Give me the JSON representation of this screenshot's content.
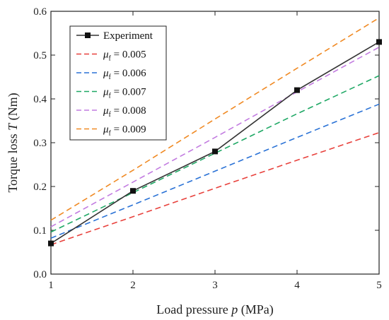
{
  "chart_data": {
    "type": "line",
    "xlabel": {
      "prefix": "Load pressure ",
      "var": "p",
      "suffix": " (MPa)"
    },
    "ylabel": {
      "prefix": "Torque loss ",
      "var": "T",
      "suffix": " (Nm)"
    },
    "xlim": [
      1,
      5
    ],
    "ylim": [
      0.0,
      0.6
    ],
    "x_ticks": [
      1,
      2,
      3,
      4,
      5
    ],
    "x_tick_labels": [
      "1",
      "2",
      "3",
      "4",
      "5"
    ],
    "y_ticks": [
      0.0,
      0.1,
      0.2,
      0.3,
      0.4,
      0.5,
      0.6
    ],
    "y_tick_labels": [
      "0.0",
      "0.1",
      "0.2",
      "0.3",
      "0.4",
      "0.5",
      "0.6"
    ],
    "grid": false,
    "legend_position": "top-left",
    "x": [
      1,
      2,
      3,
      4,
      5
    ],
    "series": [
      {
        "name": "Experiment",
        "legend_sym": "",
        "legend_sub": "",
        "legend_val": "",
        "color": "#333333",
        "style": "solid",
        "marker": "square",
        "values": [
          0.07,
          0.19,
          0.28,
          0.42,
          0.53
        ]
      },
      {
        "name": "μf = 0.005",
        "legend_sym": "μ",
        "legend_sub": "f",
        "legend_val": " = 0.005",
        "color": "#e8413c",
        "style": "dashed",
        "marker": "none",
        "values": [
          0.067,
          0.131,
          0.196,
          0.26,
          0.323
        ]
      },
      {
        "name": "μf = 0.006",
        "legend_sym": "μ",
        "legend_sub": "f",
        "legend_val": " = 0.006",
        "color": "#2a72d6",
        "style": "dashed",
        "marker": "none",
        "values": [
          0.082,
          0.158,
          0.235,
          0.312,
          0.388
        ]
      },
      {
        "name": "μf = 0.007",
        "legend_sym": "μ",
        "legend_sub": "f",
        "legend_val": " = 0.007",
        "color": "#1fa865",
        "style": "dashed",
        "marker": "none",
        "values": [
          0.096,
          0.186,
          0.276,
          0.366,
          0.453
        ]
      },
      {
        "name": "μf = 0.008",
        "legend_sym": "μ",
        "legend_sub": "f",
        "legend_val": " = 0.008",
        "color": "#c27be0",
        "style": "dashed",
        "marker": "none",
        "values": [
          0.108,
          0.21,
          0.312,
          0.416,
          0.518
        ]
      },
      {
        "name": "μf = 0.009",
        "legend_sym": "μ",
        "legend_sub": "f",
        "legend_val": " = 0.009",
        "color": "#f08a24",
        "style": "dashed",
        "marker": "none",
        "values": [
          0.123,
          0.237,
          0.354,
          0.47,
          0.585
        ]
      }
    ]
  }
}
